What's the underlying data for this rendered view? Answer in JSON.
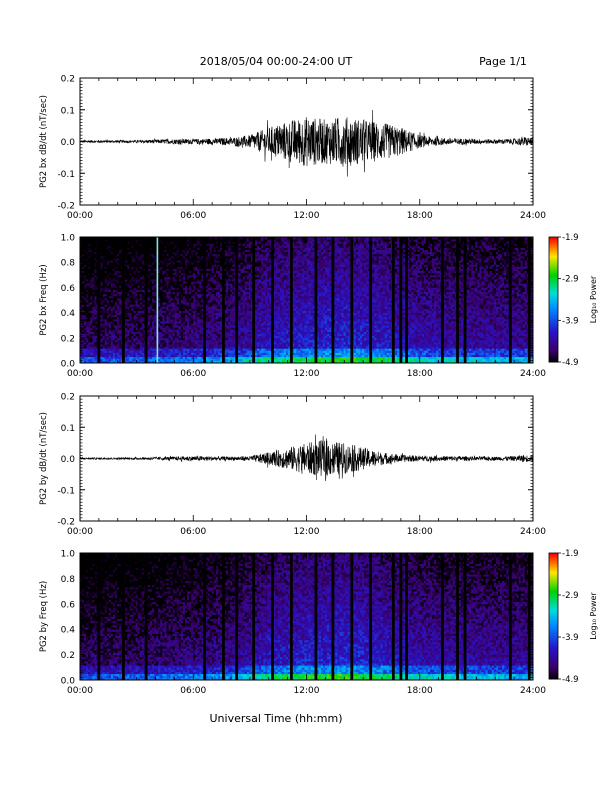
{
  "header": {
    "title": "2018/05/04  00:00-24:00 UT",
    "page": "Page 1/1"
  },
  "footer": {
    "xlabel": "Universal Time (hh:mm)"
  },
  "colorbar": {
    "label": "Log₁₀ Power",
    "ticks": [
      "-1.9",
      "-2.9",
      "-3.9",
      "-4.9"
    ],
    "range": [
      -4.9,
      -1.9
    ]
  },
  "x_ticks": [
    "00:00",
    "06:00",
    "12:00",
    "18:00",
    "24:00"
  ],
  "chart_data": [
    {
      "type": "line",
      "ylabel": "PG2 bx dB/dt (nT/sec)",
      "ylim": [
        -0.2,
        0.2
      ],
      "yticks": [
        "0.2",
        "0.1",
        "0.0",
        "-0.1",
        "-0.2"
      ],
      "xlim_hours": [
        0,
        24
      ],
      "envelope": {
        "hours": [
          0,
          3,
          5,
          6,
          8,
          9,
          10,
          11,
          12,
          13,
          14,
          15,
          16,
          17,
          18,
          19,
          20,
          21,
          22,
          23,
          23.5,
          24
        ],
        "amplitude": [
          0.004,
          0.004,
          0.008,
          0.008,
          0.012,
          0.02,
          0.045,
          0.065,
          0.08,
          0.07,
          0.08,
          0.07,
          0.06,
          0.045,
          0.02,
          0.012,
          0.01,
          0.008,
          0.007,
          0.009,
          0.015,
          0.012
        ]
      }
    },
    {
      "type": "heatmap",
      "ylabel": "PG2 bx Freq (Hz)",
      "ylim": [
        0,
        1
      ],
      "yticks": [
        "1.0",
        "0.8",
        "0.6",
        "0.4",
        "0.2",
        "0.0"
      ],
      "xlim_hours": [
        0,
        24
      ],
      "zlim": [
        -4.9,
        -1.9
      ],
      "gap_hours": [
        1.0,
        2.3,
        3.5,
        6.6,
        7.6,
        8.3,
        9.2,
        10.2,
        11.2,
        12.5,
        13.4,
        14.4,
        15.4,
        16.6,
        17.0,
        17.3,
        19.2,
        20.0,
        20.4,
        22.8,
        23.8
      ],
      "highlight_line_hours": 4.1
    },
    {
      "type": "line",
      "ylabel": "PG2 by dB/dt (nT/sec)",
      "ylim": [
        -0.2,
        0.2
      ],
      "yticks": [
        "0.2",
        "0.1",
        "0.0",
        "-0.1",
        "-0.2"
      ],
      "xlim_hours": [
        0,
        24
      ],
      "envelope": {
        "hours": [
          0,
          3,
          5,
          6,
          8,
          9,
          10,
          11,
          12,
          13,
          14,
          15,
          16,
          17,
          18,
          19,
          20,
          21,
          22,
          23,
          23.5,
          24
        ],
        "amplitude": [
          0.003,
          0.003,
          0.006,
          0.008,
          0.006,
          0.008,
          0.02,
          0.035,
          0.05,
          0.06,
          0.05,
          0.035,
          0.02,
          0.012,
          0.009,
          0.008,
          0.008,
          0.006,
          0.006,
          0.008,
          0.012,
          0.01
        ]
      }
    },
    {
      "type": "heatmap",
      "ylabel": "PG2 by Freq (Hz)",
      "ylim": [
        0,
        1
      ],
      "yticks": [
        "1.0",
        "0.8",
        "0.6",
        "0.4",
        "0.2",
        "0.0"
      ],
      "xlim_hours": [
        0,
        24
      ],
      "zlim": [
        -4.9,
        -1.9
      ],
      "gap_hours": [
        1.0,
        2.3,
        3.5,
        6.6,
        7.6,
        8.3,
        9.2,
        10.2,
        11.2,
        12.5,
        13.4,
        14.4,
        15.4,
        16.6,
        17.0,
        17.3,
        19.2,
        20.0,
        20.4,
        22.8,
        23.8
      ]
    }
  ]
}
